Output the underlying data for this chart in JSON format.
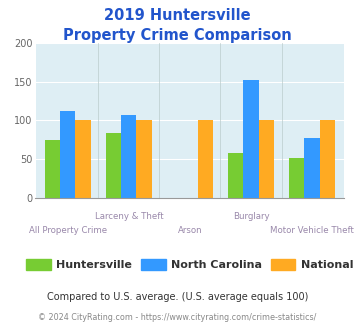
{
  "title_line1": "2019 Huntersville",
  "title_line2": "Property Crime Comparison",
  "categories": [
    "All Property Crime",
    "Larceny & Theft",
    "Arson",
    "Burglary",
    "Motor Vehicle Theft"
  ],
  "series": {
    "Huntersville": [
      75,
      84,
      0,
      58,
      52
    ],
    "North Carolina": [
      112,
      107,
      0,
      152,
      78
    ],
    "National": [
      100,
      100,
      100,
      100,
      100
    ]
  },
  "colors": {
    "Huntersville": "#77cc33",
    "North Carolina": "#3399ff",
    "National": "#ffaa22"
  },
  "ylim": [
    0,
    200
  ],
  "yticks": [
    0,
    50,
    100,
    150,
    200
  ],
  "background_color": "#deeef4",
  "title_color": "#2255cc",
  "axis_label_color": "#9988aa",
  "subtitle_text": "Compared to U.S. average. (U.S. average equals 100)",
  "subtitle_color": "#333333",
  "footer_text": "© 2024 CityRating.com - https://www.cityrating.com/crime-statistics/",
  "footer_color": "#888888",
  "legend_text_color": "#333333"
}
